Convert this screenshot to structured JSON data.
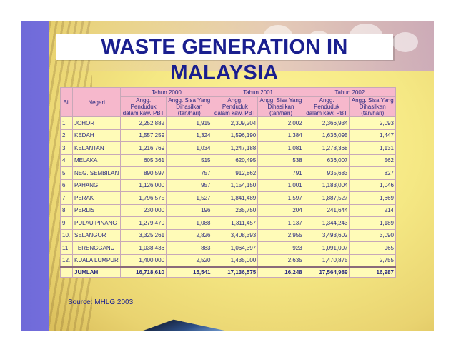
{
  "title": "WASTE GENERATION IN MALAYSIA",
  "table": {
    "col_bil": "Bil",
    "col_negeri": "Negeri",
    "years": [
      "Tahun 2000",
      "Tahun 2001",
      "Tahun 2002"
    ],
    "sub_pop": "Angg. Penduduk dalam kaw. PBT",
    "sub_waste": "Angg. Sisa Yang Dihasilkan (tan/hari)",
    "rows": [
      {
        "bil": "1.",
        "state": "JOHOR",
        "v": [
          "2,252,882",
          "1,915",
          "2,309,204",
          "2,002",
          "2,366,934",
          "2,093"
        ]
      },
      {
        "bil": "2.",
        "state": "KEDAH",
        "v": [
          "1,557,259",
          "1,324",
          "1,596,190",
          "1,384",
          "1,636,095",
          "1,447"
        ]
      },
      {
        "bil": "3.",
        "state": "KELANTAN",
        "v": [
          "1,216,769",
          "1,034",
          "1,247,188",
          "1,081",
          "1,278,368",
          "1,131"
        ]
      },
      {
        "bil": "4.",
        "state": "MELAKA",
        "v": [
          "605,361",
          "515",
          "620,495",
          "538",
          "636,007",
          "562"
        ]
      },
      {
        "bil": "5.",
        "state": "NEG. SEMBILAN",
        "v": [
          "890,597",
          "757",
          "912,862",
          "791",
          "935,683",
          "827"
        ]
      },
      {
        "bil": "6.",
        "state": "PAHANG",
        "v": [
          "1,126,000",
          "957",
          "1,154,150",
          "1,001",
          "1,183,004",
          "1,046"
        ]
      },
      {
        "bil": "7.",
        "state": "PERAK",
        "v": [
          "1,796,575",
          "1,527",
          "1,841,489",
          "1,597",
          "1,887,527",
          "1,669"
        ]
      },
      {
        "bil": "8.",
        "state": "PERLIS",
        "v": [
          "230,000",
          "196",
          "235,750",
          "204",
          "241,644",
          "214"
        ]
      },
      {
        "bil": "9.",
        "state": "PULAU PINANG",
        "v": [
          "1,279,470",
          "1,088",
          "1,311,457",
          "1,137",
          "1,344,243",
          "1,189"
        ]
      },
      {
        "bil": "10.",
        "state": "SELANGOR",
        "v": [
          "3,325,261",
          "2,826",
          "3,408,393",
          "2,955",
          "3,493,602",
          "3,090"
        ]
      },
      {
        "bil": "11.",
        "state": "TERENGGANU",
        "v": [
          "1,038,436",
          "883",
          "1,064,397",
          "923",
          "1,091,007",
          "965"
        ]
      },
      {
        "bil": "12.",
        "state": "KUALA LUMPUR",
        "v": [
          "1,400,000",
          "2,520",
          "1,435,000",
          "2,635",
          "1,470,875",
          "2,755"
        ]
      }
    ],
    "total": {
      "label": "JUMLAH",
      "v": [
        "16,718,610",
        "15,541",
        "17,136,575",
        "16,248",
        "17,564,989",
        "16,987"
      ]
    }
  },
  "source": "Source: MHLG 2003"
}
